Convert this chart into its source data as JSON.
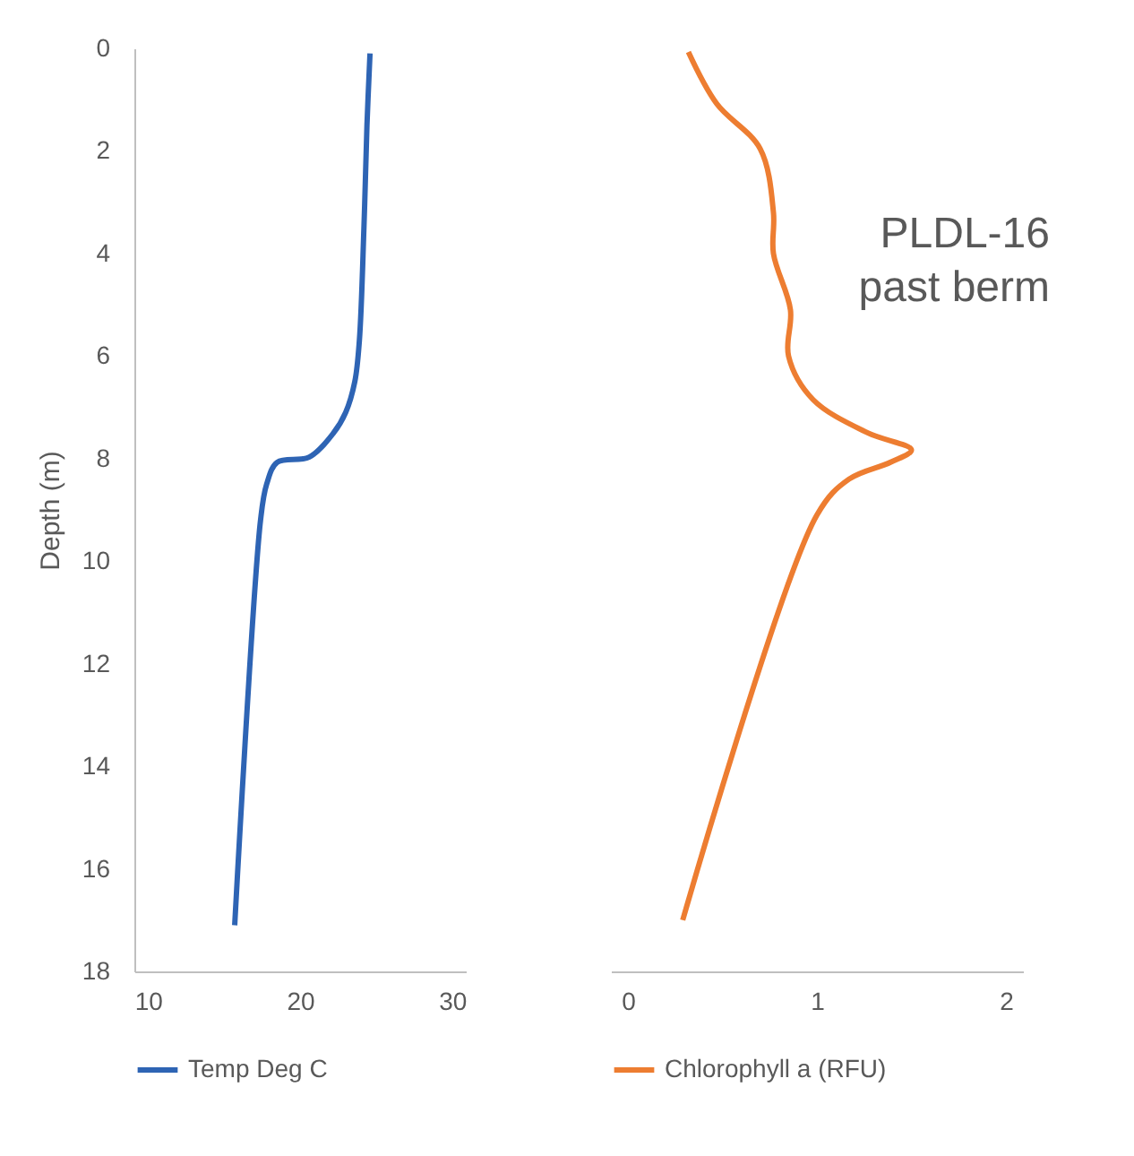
{
  "chart_data": [
    {
      "type": "line",
      "ylabel": "Depth (m)",
      "xlim": [
        9.1,
        30.9
      ],
      "xticks": [
        10,
        20,
        30
      ],
      "ylim": [
        18,
        0
      ],
      "yticks": [
        0,
        2,
        4,
        6,
        8,
        10,
        12,
        14,
        16,
        18
      ],
      "grid": false,
      "legend": "bottom",
      "marker": "none",
      "line_style": "solid",
      "series": [
        {
          "name": "Temp Deg C",
          "color": "#2e64b4",
          "x": [
            24.6,
            24.4,
            24.2,
            23.9,
            23.6,
            23.0,
            22.2,
            20.6,
            18.5,
            17.8,
            17.4,
            15.7
          ],
          "values": [
            0.1,
            1.5,
            3.5,
            5.7,
            6.5,
            7.1,
            7.5,
            7.97,
            8.07,
            8.5,
            9.2,
            17.1
          ]
        }
      ]
    },
    {
      "type": "line",
      "xlim": [
        -0.09,
        2.09
      ],
      "xticks": [
        0,
        1,
        2
      ],
      "ylim": [
        18,
        0
      ],
      "tick_labels": "x",
      "grid": false,
      "legend": "bottom",
      "marker": "none",
      "line_style": "solid",
      "annotations": [
        "PLDL-16\npast berm"
      ],
      "series": [
        {
          "name": "Chlorophyll a (RFU)",
          "color": "#ed7d31",
          "x": [
            0.32,
            0.47,
            0.7,
            0.77,
            0.77,
            0.86,
            0.85,
            0.98,
            1.27,
            1.5,
            1.39,
            1.17,
            1.0,
            0.29
          ],
          "values": [
            0.07,
            1.08,
            1.96,
            3.2,
            4.0,
            5.1,
            6.0,
            6.85,
            7.5,
            7.83,
            8.07,
            8.4,
            9.1,
            17.0
          ]
        }
      ]
    }
  ]
}
